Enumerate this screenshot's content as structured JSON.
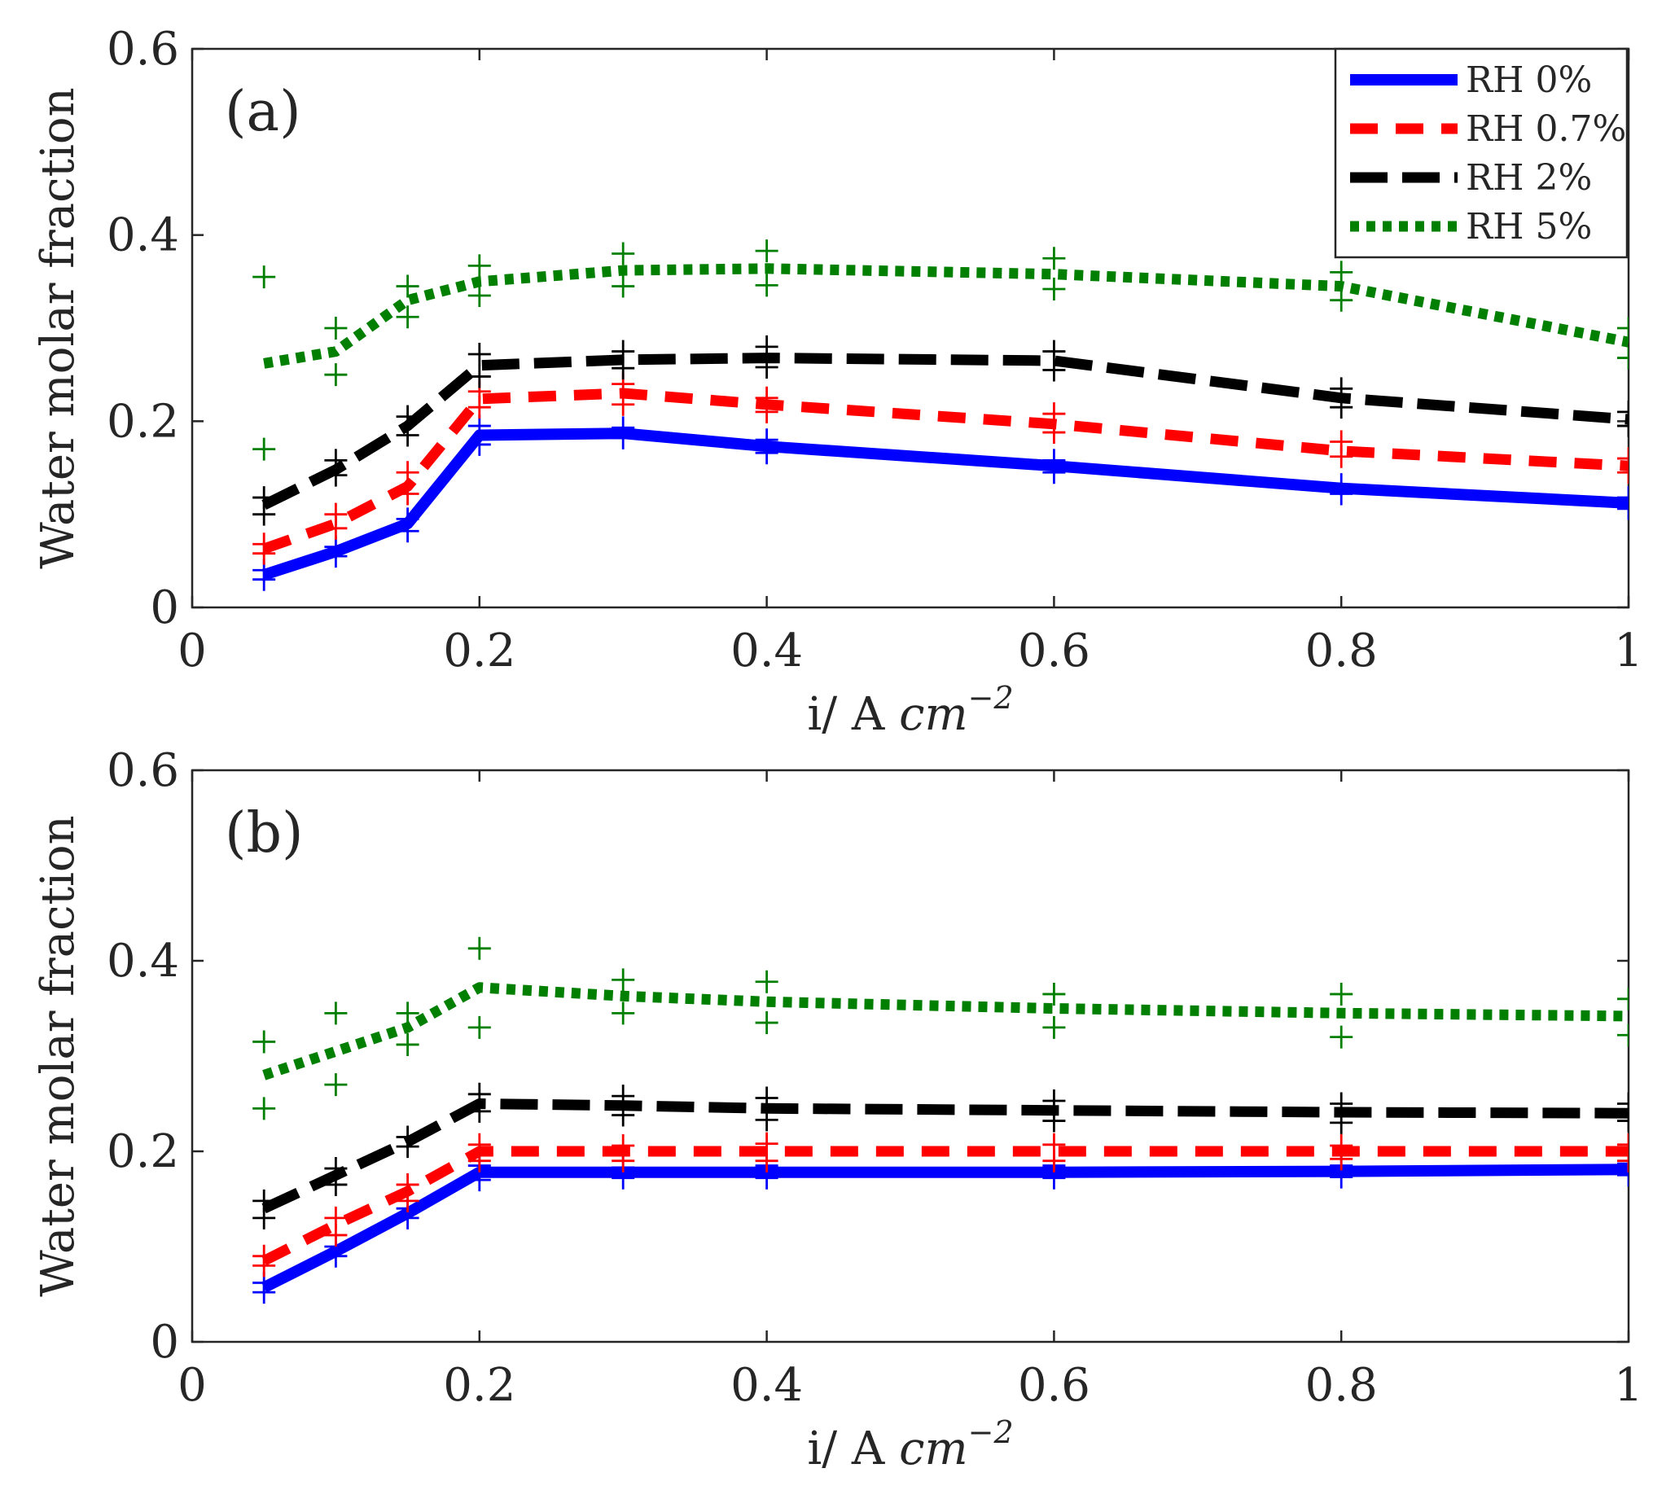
{
  "chart_data": [
    {
      "type": "line",
      "panel_label": "(a)",
      "xlabel": "i/ A cm⁻²",
      "xlabel_parts": {
        "prefix": "i/ A ",
        "var": "cm",
        "sup": "−2"
      },
      "ylabel": "Water molar fraction",
      "xlim": [
        0,
        1
      ],
      "ylim": [
        0,
        0.6
      ],
      "xticks": [
        0,
        0.2,
        0.4,
        0.6,
        0.8,
        1
      ],
      "xtick_labels": [
        "0",
        "0.2",
        "0.4",
        "0.6",
        "0.8",
        "1"
      ],
      "yticks": [
        0,
        0.2,
        0.4,
        0.6
      ],
      "ytick_labels": [
        "0",
        "0.2",
        "0.4",
        "0.6"
      ],
      "grid": false,
      "legend": {
        "placement": "top-right"
      },
      "x": [
        0.05,
        0.1,
        0.15,
        0.2,
        0.3,
        0.4,
        0.6,
        0.8,
        1.0
      ],
      "series": [
        {
          "name": "RH 0%",
          "color": "#0000ff",
          "style": "solid",
          "values": [
            0.035,
            0.06,
            0.09,
            0.185,
            0.187,
            0.173,
            0.152,
            0.128,
            0.112
          ],
          "markers_hi": [
            0.04,
            0.065,
            0.095,
            0.195,
            0.193,
            0.18,
            0.158,
            0.132,
            0.118
          ],
          "markers_lo": [
            0.03,
            0.055,
            0.082,
            0.175,
            0.182,
            0.166,
            0.145,
            0.122,
            0.106
          ]
        },
        {
          "name": "RH 0.7%",
          "color": "#ff0000",
          "style": "dashed",
          "values": [
            0.063,
            0.09,
            0.13,
            0.224,
            0.23,
            0.218,
            0.197,
            0.168,
            0.152
          ],
          "markers_hi": [
            0.068,
            0.1,
            0.145,
            0.232,
            0.24,
            0.225,
            0.208,
            0.178,
            0.16
          ],
          "markers_lo": [
            0.058,
            0.085,
            0.122,
            0.215,
            0.218,
            0.21,
            0.188,
            0.162,
            0.145
          ]
        },
        {
          "name": "RH 2%",
          "color": "#000000",
          "style": "longdash",
          "values": [
            0.11,
            0.148,
            0.195,
            0.26,
            0.266,
            0.268,
            0.265,
            0.225,
            0.202
          ],
          "markers_hi": [
            0.118,
            0.158,
            0.205,
            0.272,
            0.275,
            0.28,
            0.275,
            0.235,
            0.21
          ],
          "markers_lo": [
            0.1,
            0.142,
            0.185,
            0.248,
            0.257,
            0.258,
            0.255,
            0.215,
            0.195
          ]
        },
        {
          "name": "RH 5%",
          "color": "#007f00",
          "style": "dotted",
          "values": [
            0.262,
            0.275,
            0.33,
            0.35,
            0.362,
            0.364,
            0.358,
            0.345,
            0.285
          ],
          "markers_hi": [
            0.355,
            0.3,
            0.345,
            0.367,
            0.38,
            0.383,
            0.375,
            0.36,
            0.3
          ],
          "markers_lo": [
            0.17,
            0.25,
            0.312,
            0.335,
            0.345,
            0.346,
            0.342,
            0.33,
            0.268
          ]
        }
      ]
    },
    {
      "type": "line",
      "panel_label": "(b)",
      "xlabel": "i/ A cm⁻²",
      "xlabel_parts": {
        "prefix": "i/ A ",
        "var": "cm",
        "sup": "−2"
      },
      "ylabel": "Water molar fraction",
      "xlim": [
        0,
        1
      ],
      "ylim": [
        0,
        0.6
      ],
      "xticks": [
        0,
        0.2,
        0.4,
        0.6,
        0.8,
        1
      ],
      "xtick_labels": [
        "0",
        "0.2",
        "0.4",
        "0.6",
        "0.8",
        "1"
      ],
      "yticks": [
        0,
        0.2,
        0.4,
        0.6
      ],
      "ytick_labels": [
        "0",
        "0.2",
        "0.4",
        "0.6"
      ],
      "grid": false,
      "legend": null,
      "x": [
        0.05,
        0.1,
        0.15,
        0.2,
        0.3,
        0.4,
        0.6,
        0.8,
        1.0
      ],
      "series": [
        {
          "name": "RH 0%",
          "color": "#0000ff",
          "style": "solid",
          "values": [
            0.057,
            0.095,
            0.135,
            0.178,
            0.178,
            0.178,
            0.178,
            0.179,
            0.181
          ],
          "markers_hi": [
            0.062,
            0.1,
            0.14,
            0.185,
            0.183,
            0.185,
            0.185,
            0.185,
            0.187
          ],
          "markers_lo": [
            0.052,
            0.09,
            0.13,
            0.17,
            0.172,
            0.172,
            0.172,
            0.173,
            0.175
          ]
        },
        {
          "name": "RH 0.7%",
          "color": "#ff0000",
          "style": "dashed",
          "values": [
            0.085,
            0.123,
            0.158,
            0.2,
            0.2,
            0.2,
            0.2,
            0.2,
            0.2
          ],
          "markers_hi": [
            0.09,
            0.13,
            0.165,
            0.207,
            0.206,
            0.208,
            0.207,
            0.206,
            0.207
          ],
          "markers_lo": [
            0.08,
            0.112,
            0.148,
            0.19,
            0.19,
            0.19,
            0.19,
            0.192,
            0.19
          ]
        },
        {
          "name": "RH 2%",
          "color": "#000000",
          "style": "longdash",
          "values": [
            0.14,
            0.175,
            0.21,
            0.25,
            0.248,
            0.245,
            0.243,
            0.241,
            0.24
          ],
          "markers_hi": [
            0.148,
            0.182,
            0.215,
            0.26,
            0.258,
            0.256,
            0.253,
            0.25,
            0.25
          ],
          "markers_lo": [
            0.13,
            0.165,
            0.205,
            0.242,
            0.238,
            0.233,
            0.232,
            0.23,
            0.232
          ]
        },
        {
          "name": "RH 5%",
          "color": "#007f00",
          "style": "dotted",
          "values": [
            0.28,
            0.305,
            0.33,
            0.372,
            0.363,
            0.357,
            0.35,
            0.345,
            0.342
          ],
          "markers_hi": [
            0.315,
            0.345,
            0.345,
            0.413,
            0.38,
            0.378,
            0.365,
            0.365,
            0.36
          ],
          "markers_lo": [
            0.245,
            0.27,
            0.312,
            0.33,
            0.345,
            0.335,
            0.33,
            0.32,
            0.322
          ]
        }
      ]
    }
  ]
}
